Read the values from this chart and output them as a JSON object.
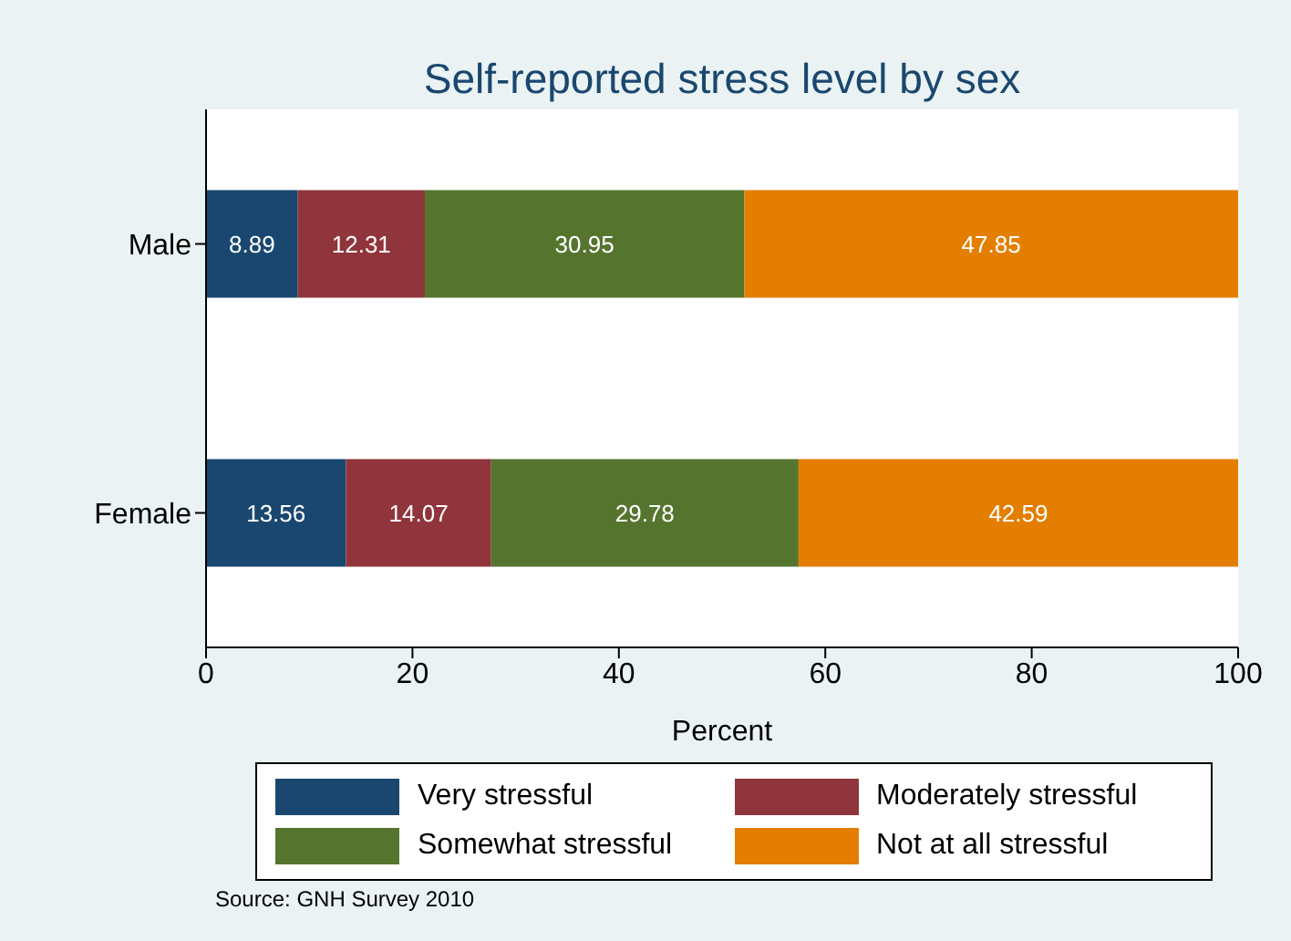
{
  "chart_data": {
    "type": "bar",
    "orientation": "horizontal",
    "stacked": true,
    "title": "Self-reported stress level by sex",
    "xlabel": "Percent",
    "categories": [
      "Male",
      "Female"
    ],
    "series": [
      {
        "name": "Very stressful",
        "color": "#1a476f",
        "values": [
          8.89,
          13.56
        ]
      },
      {
        "name": "Moderately stressful",
        "color": "#90353b",
        "values": [
          12.31,
          14.07
        ]
      },
      {
        "name": "Somewhat stressful",
        "color": "#55752f",
        "values": [
          30.95,
          29.78
        ]
      },
      {
        "name": "Not at all stressful",
        "color": "#e37e00",
        "values": [
          47.85,
          42.59
        ]
      }
    ],
    "xlim": [
      0,
      100
    ],
    "xticks": [
      0,
      20,
      40,
      60,
      80,
      100
    ],
    "data_labels": true,
    "legend": "bottom",
    "annotations": [
      "Source: GNH Survey 2010"
    ]
  }
}
